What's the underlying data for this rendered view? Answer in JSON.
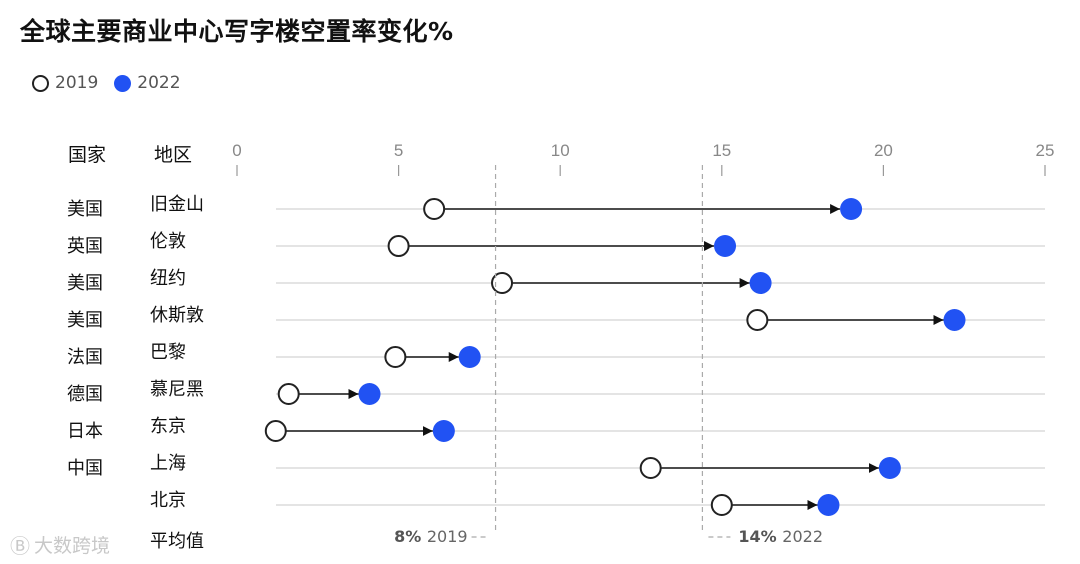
{
  "title": "全球主要商业中心写字楼空置率变化%",
  "legend": {
    "a": "2019",
    "b": "2022"
  },
  "headers": {
    "country": "国家",
    "region": "地区"
  },
  "colors": {
    "open_stroke": "#222222",
    "filled": "#2152f3",
    "grid": "#c8c8c8",
    "ref": "#aaaaaa",
    "axis_text": "#888888"
  },
  "watermark": "大数跨境",
  "chart_data": {
    "type": "dumbbell",
    "title": "全球主要商业中心写字楼空置率变化%",
    "xlim": [
      0,
      25
    ],
    "xticks": [
      0,
      5,
      10,
      15,
      20,
      25
    ],
    "series": [
      {
        "name": "2019"
      },
      {
        "name": "2022"
      }
    ],
    "rows": [
      {
        "country": "美国",
        "region": "旧金山",
        "v2019": 6.1,
        "v2022": 19.0
      },
      {
        "country": "英国",
        "region": "伦敦",
        "v2019": 5.0,
        "v2022": 15.1
      },
      {
        "country": "美国",
        "region": "纽约",
        "v2019": 8.2,
        "v2022": 16.2
      },
      {
        "country": "美国",
        "region": "休斯敦",
        "v2019": 16.1,
        "v2022": 22.2
      },
      {
        "country": "法国",
        "region": "巴黎",
        "v2019": 4.9,
        "v2022": 7.2
      },
      {
        "country": "德国",
        "region": "慕尼黑",
        "v2019": 1.6,
        "v2022": 4.1
      },
      {
        "country": "日本",
        "region": "东京",
        "v2019": 1.2,
        "v2022": 6.4
      },
      {
        "country": "中国",
        "region": "上海",
        "v2019": 12.8,
        "v2022": 20.2
      },
      {
        "country": "",
        "region": "北京",
        "v2019": 15.0,
        "v2022": 18.3
      }
    ],
    "averages": [
      {
        "label_bold": "8%",
        "label_rest": "2019",
        "value": 8
      },
      {
        "label_bold": "14%",
        "label_rest": "2022",
        "value": 14.4
      }
    ],
    "avg_row_label": "平均值"
  }
}
